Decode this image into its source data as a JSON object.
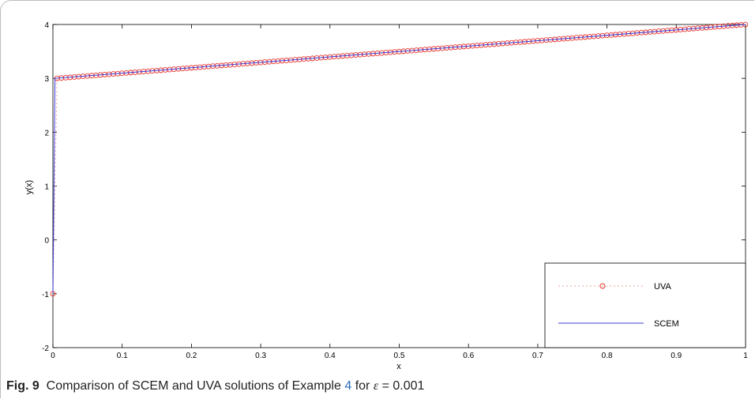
{
  "caption": {
    "label": "Fig. 9",
    "text_before": "Comparison of SCEM and UVA solutions of Example",
    "example_ref": "4",
    "text_after": "for",
    "epsilon_symbol": "ε",
    "equals": "=",
    "epsilon_value": "0.001"
  },
  "chart_data": {
    "type": "line",
    "xlabel": "x",
    "ylabel": "y(x)",
    "xlim": [
      0,
      1
    ],
    "ylim": [
      -2,
      4
    ],
    "x_ticks": [
      "0",
      "0.1",
      "0.2",
      "0.3",
      "0.4",
      "0.5",
      "0.6",
      "0.7",
      "0.8",
      "0.9",
      "1"
    ],
    "y_ticks": [
      "-2",
      "-1",
      "0",
      "1",
      "2",
      "3",
      "4"
    ],
    "grid": false,
    "legend_position": "bottom-right",
    "series": [
      {
        "name": "UVA",
        "style": "dotted-circles",
        "color": "#e8352b",
        "line_color": "#f2a0a0",
        "x": [
          0,
          0.006,
          1
        ],
        "y": [
          -1,
          3,
          4
        ],
        "marker_step": 0.00625
      },
      {
        "name": "SCEM",
        "style": "solid",
        "color": "#3b3bd6",
        "x": [
          0,
          0.003,
          1
        ],
        "y": [
          -1,
          3,
          4
        ]
      }
    ]
  }
}
